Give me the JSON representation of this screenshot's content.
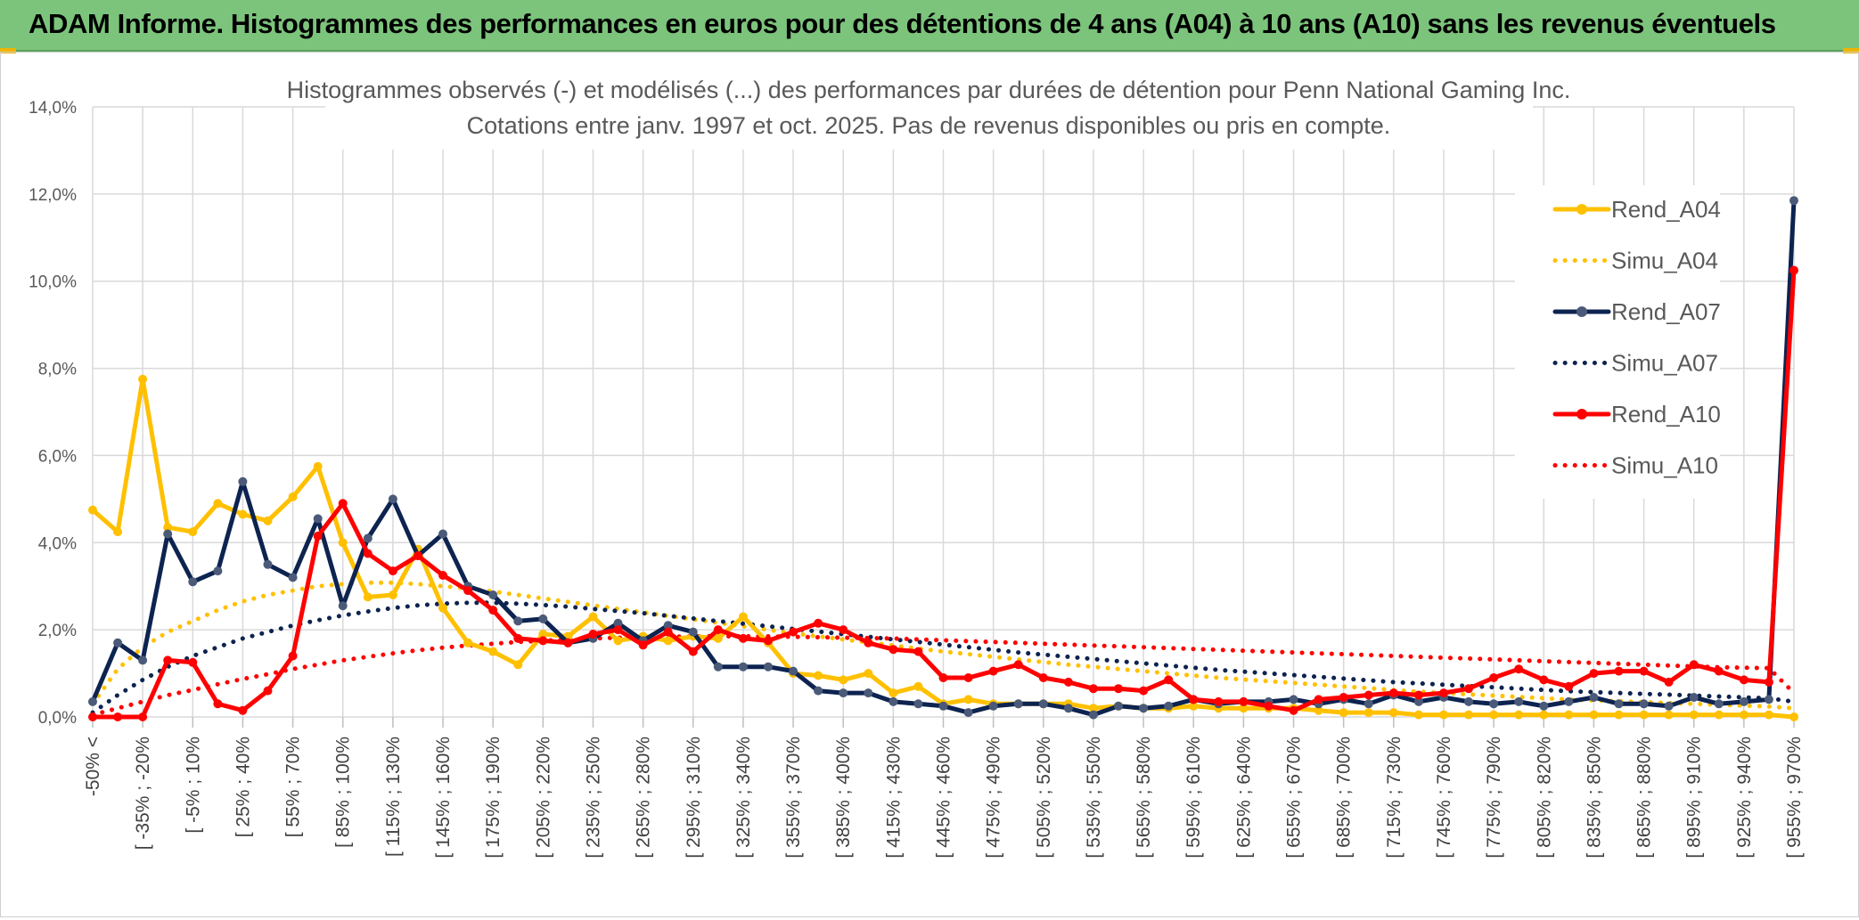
{
  "header": {
    "title": "ADAM Informe. Histogrammes des performances en euros pour des détentions de 4 ans (A04) à 10 ans (A10) sans les revenus éventuels"
  },
  "colors": {
    "header_bg": "#7cc47c",
    "rend_a04": "#ffc000",
    "rend_a07": "#0d2350",
    "rend_a10": "#ff0000",
    "marker_a07": "#4a5a78",
    "grid": "#d9d9d9"
  },
  "chart_data": {
    "type": "line",
    "title": "Histogrammes observés (-) et modélisés (...) des performances par durées de détention pour Penn National Gaming Inc.",
    "subtitle": "Cotations entre janv. 1997 et oct. 2025. Pas de revenus disponibles ou pris en compte.",
    "xlabel": "",
    "ylabel": "",
    "ylim": [
      0,
      14
    ],
    "yticks": [
      "0,0%",
      "2,0%",
      "4,0%",
      "6,0%",
      "8,0%",
      "10,0%",
      "12,0%",
      "14,0%"
    ],
    "grid": true,
    "legend_position": "right",
    "x_tick_labels": [
      "-50% <",
      "[ -35% ; -20%",
      "[ -5% ; 10%",
      "[ 25% ; 40%",
      "[ 55% ; 70%",
      "[ 85% ; 100%",
      "[ 115% ; 130%",
      "[ 145% ; 160%",
      "[ 175% ; 190%",
      "[ 205% ; 220%",
      "[ 235% ; 250%",
      "[ 265% ; 280%",
      "[ 295% ; 310%",
      "[ 325% ; 340%",
      "[ 355% ; 370%",
      "[ 385% ; 400%",
      "[ 415% ; 430%",
      "[ 445% ; 460%",
      "[ 475% ; 490%",
      "[ 505% ; 520%",
      "[ 535% ; 550%",
      "[ 565% ; 580%",
      "[ 595% ; 610%",
      "[ 625% ; 640%",
      "[ 655% ; 670%",
      "[ 685% ; 700%",
      "[ 715% ; 730%",
      "[ 745% ; 760%",
      "[ 775% ; 790%",
      "[ 805% ; 820%",
      "[ 835% ; 850%",
      "[ 865% ; 880%",
      "[ 895% ; 910%",
      "[ 925% ; 940%",
      "[ 955% ; 970%"
    ],
    "series": [
      {
        "name": "Rend_A04",
        "style": "solid",
        "markers": true,
        "color": "#ffc000",
        "values": [
          4.75,
          4.25,
          7.75,
          4.35,
          4.25,
          4.9,
          4.65,
          4.5,
          5.05,
          5.75,
          4.0,
          2.75,
          2.8,
          3.85,
          2.5,
          1.7,
          1.5,
          1.2,
          1.9,
          1.85,
          2.3,
          1.75,
          1.85,
          1.75,
          1.85,
          1.8,
          2.3,
          1.7,
          1.0,
          0.95,
          0.85,
          1.0,
          0.55,
          0.7,
          0.3,
          0.4,
          0.3,
          0.3,
          0.3,
          0.3,
          0.2,
          0.25,
          0.2,
          0.2,
          0.25,
          0.2,
          0.2,
          0.2,
          0.2,
          0.15,
          0.1,
          0.1,
          0.1,
          0.05,
          0.05,
          0.05,
          0.05,
          0.05,
          0.05,
          0.05,
          0.05,
          0.05,
          0.05,
          0.05,
          0.05,
          0.05,
          0.05,
          0.05,
          0.0
        ]
      },
      {
        "name": "Simu_A04",
        "style": "dotted",
        "markers": false,
        "color": "#ffc000",
        "values": [
          0.3,
          1.1,
          1.6,
          1.95,
          2.2,
          2.45,
          2.65,
          2.8,
          2.9,
          3.0,
          3.05,
          3.08,
          3.08,
          3.05,
          3.0,
          2.95,
          2.88,
          2.8,
          2.72,
          2.64,
          2.56,
          2.48,
          2.4,
          2.32,
          2.24,
          2.16,
          2.08,
          2.0,
          1.92,
          1.85,
          1.78,
          1.71,
          1.64,
          1.57,
          1.5,
          1.44,
          1.38,
          1.32,
          1.26,
          1.2,
          1.15,
          1.1,
          1.05,
          1.0,
          0.95,
          0.9,
          0.86,
          0.82,
          0.78,
          0.74,
          0.7,
          0.66,
          0.62,
          0.58,
          0.55,
          0.52,
          0.49,
          0.46,
          0.43,
          0.4,
          0.38,
          0.36,
          0.34,
          0.32,
          0.3,
          0.28,
          0.26,
          0.24,
          0.2
        ]
      },
      {
        "name": "Rend_A07",
        "style": "solid",
        "markers": true,
        "color": "#0d2350",
        "values": [
          0.35,
          1.7,
          1.3,
          4.2,
          3.1,
          3.35,
          5.4,
          3.5,
          3.2,
          4.55,
          2.55,
          4.1,
          5.0,
          3.7,
          4.2,
          3.0,
          2.8,
          2.2,
          2.25,
          1.7,
          1.8,
          2.15,
          1.75,
          2.1,
          1.95,
          1.15,
          1.15,
          1.15,
          1.05,
          0.6,
          0.55,
          0.55,
          0.35,
          0.3,
          0.25,
          0.1,
          0.25,
          0.3,
          0.3,
          0.2,
          0.05,
          0.25,
          0.2,
          0.25,
          0.4,
          0.3,
          0.35,
          0.35,
          0.4,
          0.3,
          0.4,
          0.3,
          0.5,
          0.35,
          0.45,
          0.35,
          0.3,
          0.35,
          0.25,
          0.35,
          0.45,
          0.3,
          0.3,
          0.25,
          0.45,
          0.3,
          0.35,
          0.4,
          11.85
        ]
      },
      {
        "name": "Simu_A07",
        "style": "dotted",
        "markers": false,
        "color": "#0d2350",
        "values": [
          0.1,
          0.5,
          0.85,
          1.15,
          1.4,
          1.6,
          1.8,
          1.95,
          2.1,
          2.22,
          2.33,
          2.42,
          2.5,
          2.56,
          2.6,
          2.62,
          2.62,
          2.6,
          2.57,
          2.53,
          2.48,
          2.43,
          2.38,
          2.32,
          2.26,
          2.2,
          2.14,
          2.08,
          2.02,
          1.96,
          1.9,
          1.84,
          1.78,
          1.72,
          1.66,
          1.6,
          1.54,
          1.48,
          1.43,
          1.38,
          1.33,
          1.28,
          1.23,
          1.18,
          1.13,
          1.08,
          1.04,
          1.0,
          0.96,
          0.92,
          0.88,
          0.84,
          0.8,
          0.77,
          0.74,
          0.71,
          0.68,
          0.65,
          0.62,
          0.59,
          0.57,
          0.55,
          0.53,
          0.51,
          0.49,
          0.47,
          0.45,
          0.43,
          0.35
        ]
      },
      {
        "name": "Rend_A10",
        "style": "solid",
        "markers": true,
        "color": "#ff0000",
        "values": [
          0.0,
          0.0,
          0.0,
          1.3,
          1.25,
          0.3,
          0.15,
          0.6,
          1.4,
          4.15,
          4.9,
          3.75,
          3.35,
          3.7,
          3.25,
          2.9,
          2.45,
          1.8,
          1.75,
          1.7,
          1.9,
          2.0,
          1.65,
          1.95,
          1.5,
          2.0,
          1.8,
          1.75,
          1.95,
          2.15,
          2.0,
          1.7,
          1.55,
          1.5,
          0.9,
          0.9,
          1.05,
          1.2,
          0.9,
          0.8,
          0.65,
          0.65,
          0.6,
          0.85,
          0.4,
          0.35,
          0.35,
          0.25,
          0.15,
          0.4,
          0.45,
          0.5,
          0.55,
          0.5,
          0.55,
          0.65,
          0.9,
          1.1,
          0.85,
          0.7,
          1.0,
          1.05,
          1.05,
          0.8,
          1.2,
          1.05,
          0.85,
          0.8,
          10.25
        ]
      },
      {
        "name": "Simu_A10",
        "style": "dotted",
        "markers": false,
        "color": "#ff0000",
        "values": [
          0.05,
          0.2,
          0.35,
          0.5,
          0.62,
          0.75,
          0.87,
          0.98,
          1.1,
          1.2,
          1.3,
          1.38,
          1.46,
          1.53,
          1.59,
          1.64,
          1.68,
          1.72,
          1.75,
          1.78,
          1.8,
          1.82,
          1.83,
          1.84,
          1.85,
          1.85,
          1.85,
          1.85,
          1.84,
          1.83,
          1.82,
          1.81,
          1.8,
          1.78,
          1.76,
          1.74,
          1.72,
          1.7,
          1.68,
          1.66,
          1.64,
          1.62,
          1.6,
          1.58,
          1.56,
          1.54,
          1.52,
          1.5,
          1.48,
          1.46,
          1.44,
          1.42,
          1.4,
          1.38,
          1.36,
          1.34,
          1.32,
          1.3,
          1.28,
          1.26,
          1.24,
          1.22,
          1.2,
          1.18,
          1.16,
          1.14,
          1.13,
          1.12,
          0.55
        ]
      }
    ]
  }
}
